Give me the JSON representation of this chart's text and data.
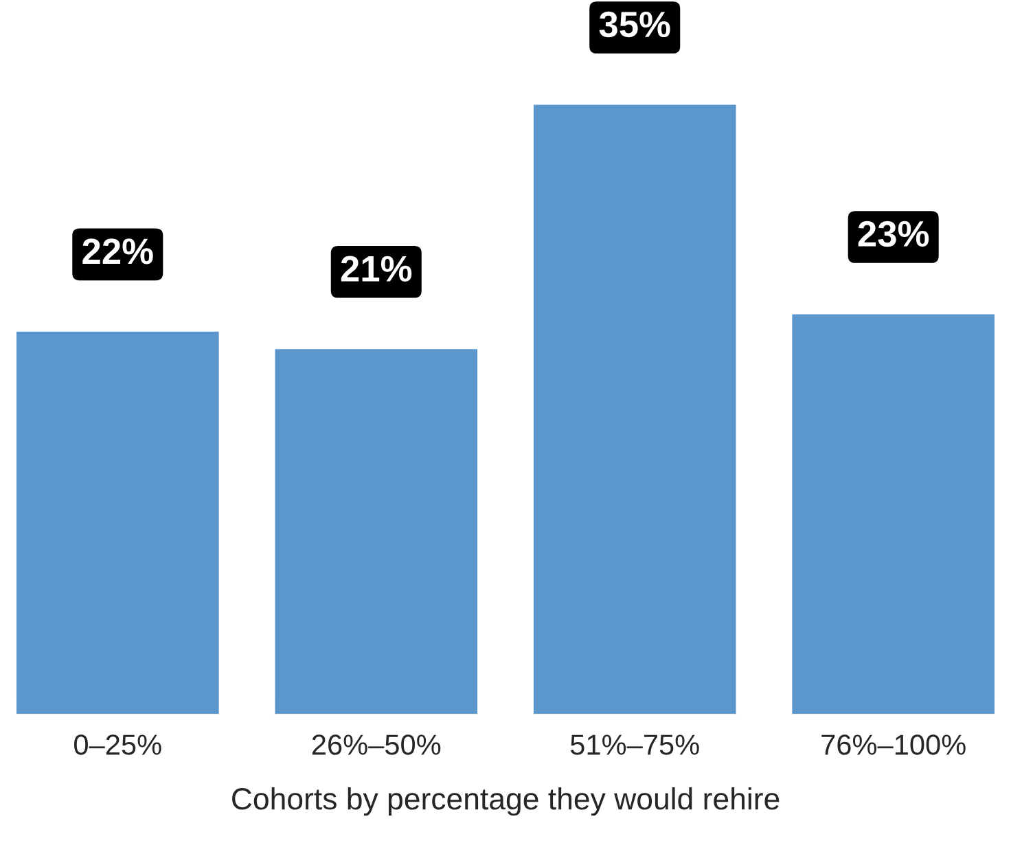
{
  "chart_data": {
    "type": "bar",
    "xlabel": "Cohorts by percentage they would rehire",
    "categories": [
      "0–25%",
      "26%–50%",
      "51%–75%",
      "76%–100%"
    ],
    "values": [
      22,
      21,
      35,
      23
    ],
    "value_labels": [
      "22%",
      "21%",
      "35%",
      "23%"
    ],
    "color": "#5b96cc",
    "tick_labels": "x",
    "grid": false,
    "legend": false
  }
}
